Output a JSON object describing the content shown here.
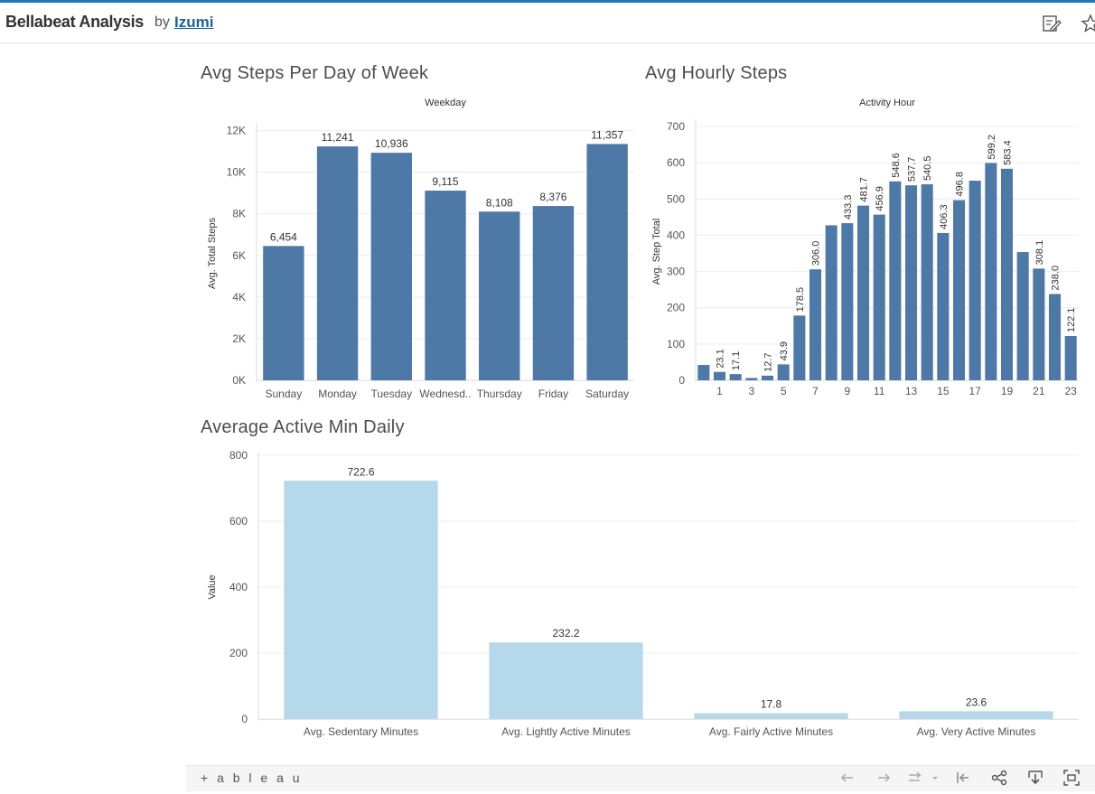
{
  "header": {
    "title": "Bellabeat Analysis",
    "by": "by",
    "author": "Izumi",
    "icons": [
      "edit-icon",
      "star-icon"
    ]
  },
  "footer": {
    "logo_text": "+ a b l e a u",
    "icons": [
      "undo-icon",
      "redo-icon",
      "revert-icon",
      "reset-icon",
      "share-icon",
      "download-icon",
      "fullscreen-icon"
    ]
  },
  "colors": {
    "dark_bar": "#4e79a7",
    "light_bar": "#b5d8ea",
    "topline": "#1f77b4"
  },
  "chart_data": [
    {
      "id": "weekday",
      "type": "bar",
      "title": "Avg Steps Per Day of Week",
      "header": "Weekday",
      "xlabel": "",
      "ylabel": "Avg. Total Steps",
      "categories": [
        "Sunday",
        "Monday",
        "Tuesday",
        "Wednesd..",
        "Thursday",
        "Friday",
        "Saturday"
      ],
      "values": [
        6454,
        11241,
        10936,
        9115,
        8108,
        8376,
        11357
      ],
      "data_labels": [
        "6,454",
        "11,241",
        "10,936",
        "9,115",
        "8,108",
        "8,376",
        "11,357"
      ],
      "yticks": [
        0,
        2000,
        4000,
        6000,
        8000,
        10000,
        12000
      ],
      "ytick_labels": [
        "0K",
        "2K",
        "4K",
        "6K",
        "8K",
        "10K",
        "12K"
      ],
      "ylim": [
        0,
        12200
      ],
      "grid": true
    },
    {
      "id": "hourly",
      "type": "bar",
      "title": "Avg Hourly Steps",
      "header": "Activity Hour",
      "xlabel": "",
      "ylabel": "Avg. Step Total",
      "categories": [
        0,
        1,
        2,
        3,
        4,
        5,
        6,
        7,
        8,
        9,
        10,
        11,
        12,
        13,
        14,
        15,
        16,
        17,
        18,
        19,
        20,
        21,
        22,
        23
      ],
      "xtick_labels": [
        "",
        "1",
        "",
        "3",
        "",
        "5",
        "",
        "7",
        "",
        "9",
        "",
        "11",
        "",
        "13",
        "",
        "15",
        "",
        "17",
        "",
        "19",
        "",
        "21",
        "",
        "23"
      ],
      "values": [
        42.2,
        23.1,
        17.1,
        6.4,
        12.7,
        43.9,
        178.5,
        306.0,
        427.5,
        433.3,
        481.7,
        456.9,
        548.6,
        537.7,
        540.5,
        406.3,
        496.8,
        550.5,
        599.2,
        583.4,
        353.6,
        308.1,
        238.0,
        122.1
      ],
      "data_labels": [
        "",
        "23.1",
        "17.1",
        "",
        "12.7",
        "43.9",
        "178.5",
        "306.0",
        "",
        "433.3",
        "481.7",
        "456.9",
        "548.6",
        "537.7",
        "540.5",
        "406.3",
        "496.8",
        "",
        "599.2",
        "583.4",
        "",
        "308.1",
        "238.0",
        "122.1"
      ],
      "yticks": [
        0,
        100,
        200,
        300,
        400,
        500,
        600,
        700
      ],
      "ytick_labels": [
        "0",
        "100",
        "200",
        "300",
        "400",
        "500",
        "600",
        "700"
      ],
      "ylim": [
        0,
        710
      ],
      "grid": true
    },
    {
      "id": "active",
      "type": "bar",
      "title": "Average Active Min Daily",
      "header": "",
      "xlabel": "",
      "ylabel": "Value",
      "categories": [
        "Avg. Sedentary Minutes",
        "Avg. Lightly Active Minutes",
        "Avg. Fairly Active Minutes",
        "Avg. Very Active Minutes"
      ],
      "values": [
        722.6,
        232.2,
        17.8,
        23.6
      ],
      "data_labels": [
        "722.6",
        "232.2",
        "17.8",
        "23.6"
      ],
      "yticks": [
        0,
        200,
        400,
        600,
        800
      ],
      "ytick_labels": [
        "0",
        "200",
        "400",
        "600",
        "800"
      ],
      "ylim": [
        0,
        800
      ],
      "grid": true
    }
  ]
}
